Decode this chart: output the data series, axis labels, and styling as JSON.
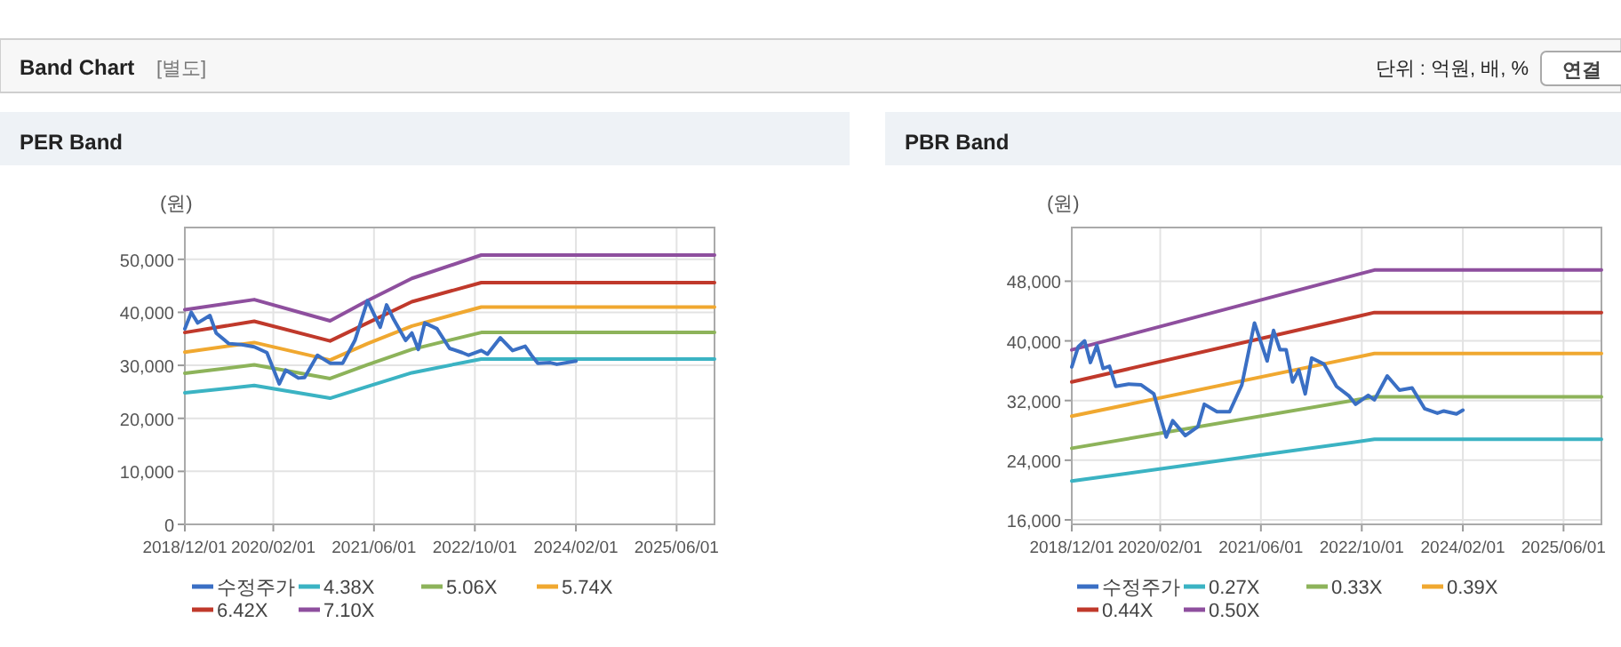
{
  "chart_data": [
    {
      "type": "line",
      "title": "PER Band",
      "ylabel": "(원)",
      "annotations": [
        "Band Chart",
        "[별도]",
        "단위 : 억원, 배, %",
        "연결"
      ],
      "xlim": [
        "2018-12-01",
        "2025-12-01"
      ],
      "xticks": [
        {
          "value": "2018-12-01",
          "label": "2018/12/01"
        },
        {
          "value": "2020-02-01",
          "label": "2020/02/01"
        },
        {
          "value": "2021-06-01",
          "label": "2021/06/01"
        },
        {
          "value": "2022-10-01",
          "label": "2022/10/01"
        },
        {
          "value": "2024-02-01",
          "label": "2024/02/01"
        },
        {
          "value": "2025-06-01",
          "label": "2025/06/01"
        }
      ],
      "ylim": [
        0,
        56000
      ],
      "yticks": [
        {
          "value": 0,
          "label": "0"
        },
        {
          "value": 10000,
          "label": "10,000"
        },
        {
          "value": 20000,
          "label": "20,000"
        },
        {
          "value": 30000,
          "label": "30,000"
        },
        {
          "value": 40000,
          "label": "40,000"
        },
        {
          "value": 50000,
          "label": "50,000"
        }
      ],
      "grid": true,
      "legend": "bottom",
      "series": [
        {
          "name": "수정주가",
          "color": "#3a6fc4",
          "x": [
            "2018-12",
            "2019-01",
            "2019-02",
            "2019-04",
            "2019-05",
            "2019-07",
            "2019-09",
            "2019-11",
            "2020-01",
            "2020-03",
            "2020-04",
            "2020-06",
            "2020-07",
            "2020-09",
            "2020-11",
            "2021-01",
            "2021-03",
            "2021-05",
            "2021-07",
            "2021-08",
            "2021-09",
            "2021-11",
            "2021-12",
            "2022-01",
            "2022-02",
            "2022-04",
            "2022-06",
            "2022-08",
            "2022-09",
            "2022-11",
            "2022-12",
            "2023-02",
            "2023-04",
            "2023-06",
            "2023-07",
            "2023-08",
            "2023-10",
            "2023-11",
            "2024-02"
          ],
          "values": [
            36900,
            40000,
            38000,
            39400,
            36100,
            34100,
            33900,
            33500,
            32400,
            26500,
            29100,
            27600,
            27700,
            31900,
            30400,
            30400,
            34700,
            42200,
            37200,
            41400,
            38900,
            34700,
            36100,
            33000,
            38000,
            36900,
            33200,
            32400,
            31900,
            32800,
            32100,
            35200,
            32800,
            33600,
            31900,
            30400,
            30500,
            30200,
            30800
          ]
        },
        {
          "name": "4.38X",
          "color": "#3bb3c3",
          "x": [
            "2018-12",
            "2019-11",
            "2020-11",
            "2021-05",
            "2021-12",
            "2022-11",
            "2025-12"
          ],
          "values": [
            24800,
            26200,
            23800,
            26000,
            28600,
            31200,
            31200
          ]
        },
        {
          "name": "5.06X",
          "color": "#8db35a",
          "x": [
            "2018-12",
            "2019-11",
            "2020-11",
            "2021-05",
            "2021-12",
            "2022-11",
            "2025-12"
          ],
          "values": [
            28500,
            30100,
            27500,
            30100,
            33000,
            36200,
            36200
          ]
        },
        {
          "name": "5.74X",
          "color": "#f0a830",
          "x": [
            "2018-12",
            "2019-11",
            "2020-11",
            "2021-05",
            "2021-12",
            "2022-11",
            "2025-12"
          ],
          "values": [
            32500,
            34300,
            31000,
            34100,
            37400,
            41000,
            41000
          ]
        },
        {
          "name": "6.42X",
          "color": "#c0392b",
          "x": [
            "2018-12",
            "2019-11",
            "2020-11",
            "2021-05",
            "2021-12",
            "2022-11",
            "2025-12"
          ],
          "values": [
            36200,
            38300,
            34600,
            38000,
            42000,
            45600,
            45600
          ]
        },
        {
          "name": "7.10X",
          "color": "#8e4f9e",
          "x": [
            "2018-12",
            "2019-11",
            "2020-11",
            "2021-05",
            "2021-12",
            "2022-11",
            "2025-12"
          ],
          "values": [
            40500,
            42400,
            38400,
            42200,
            46400,
            50800,
            50800
          ]
        }
      ]
    },
    {
      "type": "line",
      "title": "PBR Band",
      "ylabel": "(원)",
      "xlim": [
        "2018-12-01",
        "2025-12-01"
      ],
      "xticks": [
        {
          "value": "2018-12-01",
          "label": "2018/12/01"
        },
        {
          "value": "2020-02-01",
          "label": "2020/02/01"
        },
        {
          "value": "2021-06-01",
          "label": "2021/06/01"
        },
        {
          "value": "2022-10-01",
          "label": "2022/10/01"
        },
        {
          "value": "2024-02-01",
          "label": "2024/02/01"
        },
        {
          "value": "2025-06-01",
          "label": "2025/06/01"
        }
      ],
      "ylim": [
        15400,
        55200
      ],
      "yticks": [
        {
          "value": 16000,
          "label": "16,000"
        },
        {
          "value": 24000,
          "label": "24,000"
        },
        {
          "value": 32000,
          "label": "32,000"
        },
        {
          "value": 40000,
          "label": "40,000"
        },
        {
          "value": 48000,
          "label": "48,000"
        }
      ],
      "grid": true,
      "legend": "bottom",
      "series": [
        {
          "name": "수정주가",
          "color": "#3a6fc4",
          "x": [
            "2018-12",
            "2019-01",
            "2019-02",
            "2019-03",
            "2019-04",
            "2019-05",
            "2019-06",
            "2019-07",
            "2019-09",
            "2019-11",
            "2020-01",
            "2020-03",
            "2020-04",
            "2020-06",
            "2020-08",
            "2020-09",
            "2020-11",
            "2021-01",
            "2021-03",
            "2021-05",
            "2021-07",
            "2021-08",
            "2021-09",
            "2021-10",
            "2021-11",
            "2021-12",
            "2022-01",
            "2022-02",
            "2022-04",
            "2022-06",
            "2022-08",
            "2022-09",
            "2022-11",
            "2022-12",
            "2023-02",
            "2023-04",
            "2023-06",
            "2023-08",
            "2023-10",
            "2023-11",
            "2024-01",
            "2024-02"
          ],
          "values": [
            36500,
            39200,
            40000,
            37100,
            39400,
            36300,
            36600,
            33900,
            34200,
            34100,
            32900,
            27100,
            29300,
            27300,
            28500,
            31500,
            30500,
            30500,
            34100,
            42400,
            37300,
            41400,
            38800,
            38800,
            34500,
            36100,
            32900,
            37700,
            36900,
            33900,
            32600,
            31500,
            32700,
            32100,
            35300,
            33400,
            33700,
            30900,
            30300,
            30600,
            30200,
            30700
          ]
        },
        {
          "name": "0.27X",
          "color": "#3bb3c3",
          "x": [
            "2018-12",
            "2022-12",
            "2025-12"
          ],
          "values": [
            21200,
            26800,
            26800
          ]
        },
        {
          "name": "0.33X",
          "color": "#8db35a",
          "x": [
            "2018-12",
            "2022-12",
            "2025-12"
          ],
          "values": [
            25600,
            32500,
            32500
          ]
        },
        {
          "name": "0.39X",
          "color": "#f0a830",
          "x": [
            "2018-12",
            "2022-12",
            "2025-12"
          ],
          "values": [
            29900,
            38300,
            38300
          ]
        },
        {
          "name": "0.44X",
          "color": "#c0392b",
          "x": [
            "2018-12",
            "2022-12",
            "2025-12"
          ],
          "values": [
            34500,
            43800,
            43800
          ]
        },
        {
          "name": "0.50X",
          "color": "#8e4f9e",
          "x": [
            "2018-12",
            "2022-12",
            "2025-12"
          ],
          "values": [
            38800,
            49500,
            49500
          ]
        }
      ]
    }
  ]
}
